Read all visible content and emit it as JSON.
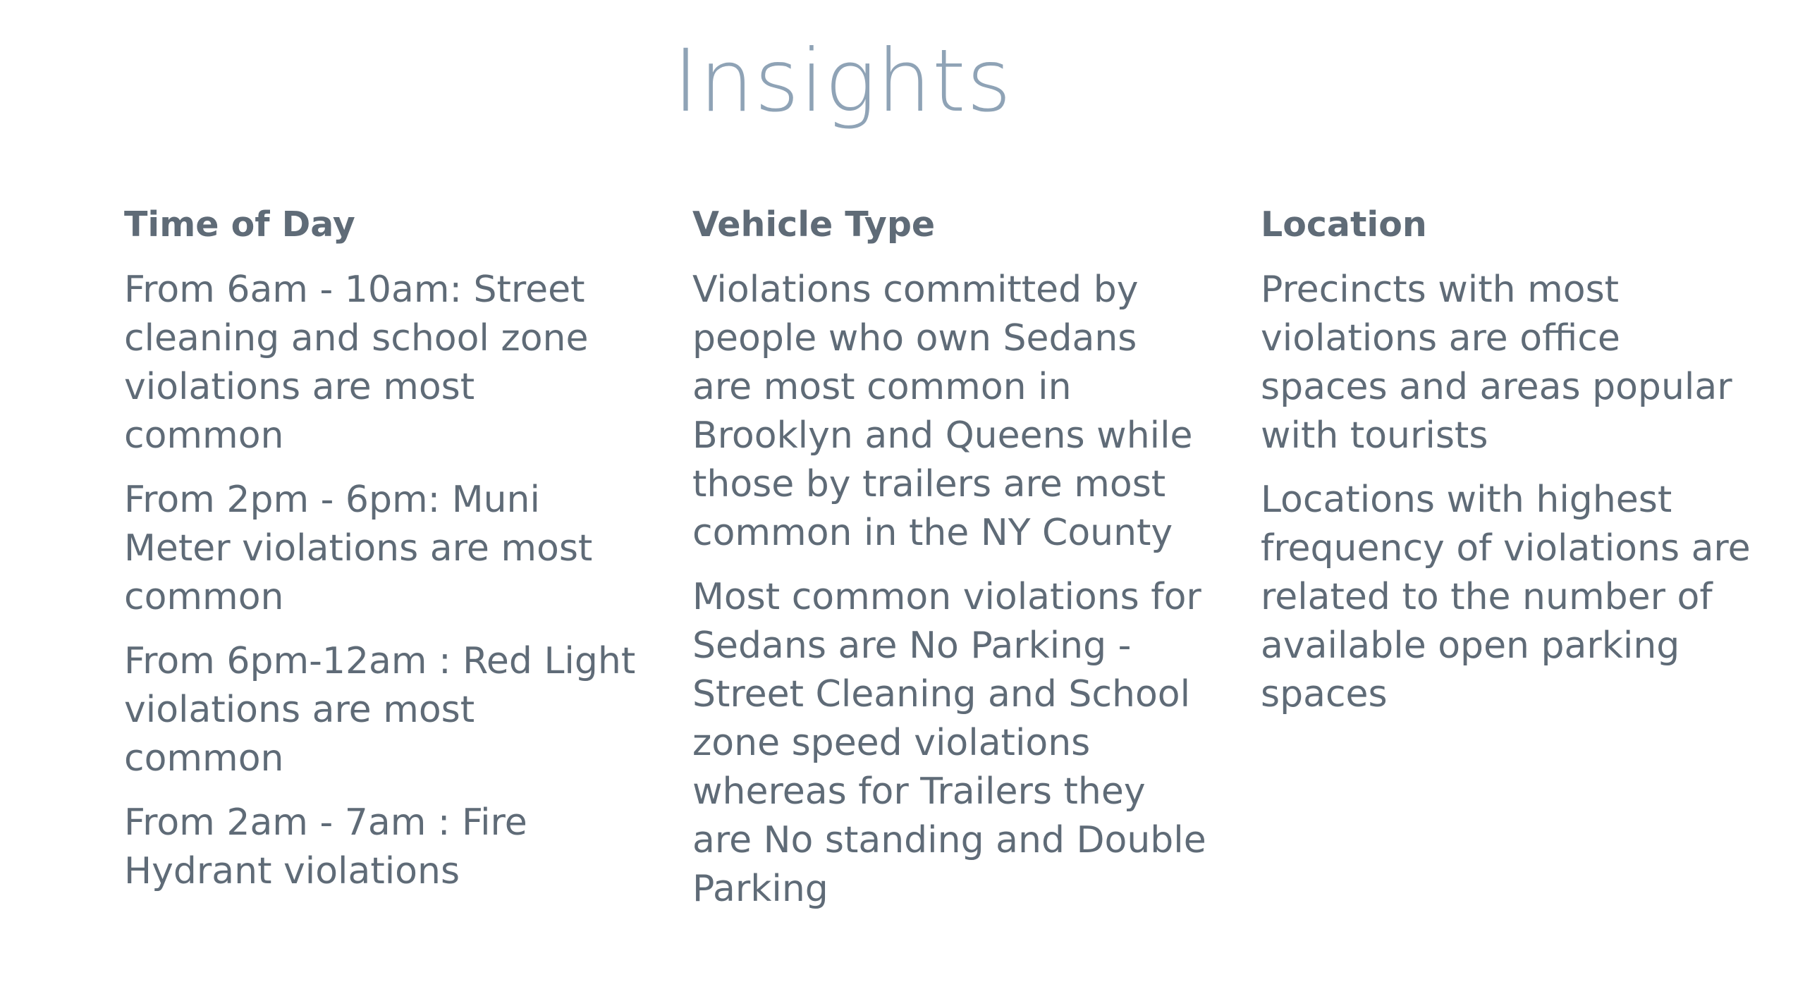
{
  "title": "Insights",
  "columns": [
    {
      "heading": "Time of Day",
      "paragraphs": [
        "From 6am - 10am: Street cleaning and school zone violations are most common",
        "From 2pm - 6pm: Muni Meter violations are most common",
        "From 6pm-12am : Red Light violations are most common",
        "From 2am - 7am : Fire Hydrant violations"
      ]
    },
    {
      "heading": "Vehicle Type",
      "paragraphs": [
        "Violations committed by people who own Sedans are most common in Brooklyn and Queens  while those by trailers are most common in the NY County",
        "Most common violations for Sedans are No Parking - Street Cleaning and School zone speed violations whereas for Trailers they are No standing and Double Parking"
      ]
    },
    {
      "heading": "Location",
      "paragraphs": [
        "Precincts with most violations are office spaces and areas popular with tourists",
        "Locations with highest frequency of violations are related to the number of available open parking spaces"
      ]
    }
  ]
}
